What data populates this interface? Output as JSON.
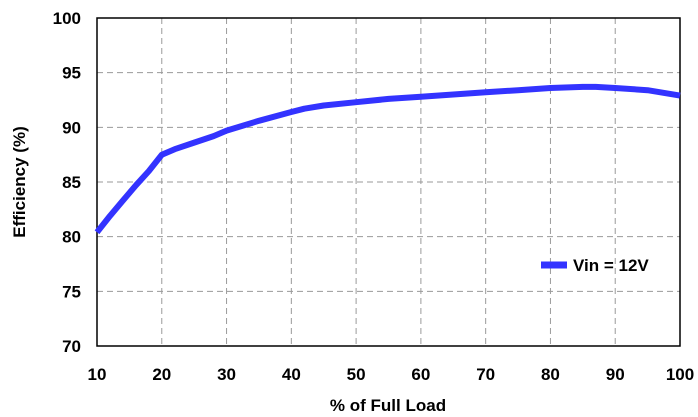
{
  "chart_data": {
    "type": "line",
    "title": "",
    "xlabel": "% of Full Load",
    "ylabel": "Efficiency (%)",
    "xlim": [
      10,
      100
    ],
    "ylim": [
      70,
      100
    ],
    "xticks": [
      10,
      20,
      30,
      40,
      50,
      60,
      70,
      80,
      90,
      100
    ],
    "yticks": [
      70,
      75,
      80,
      85,
      90,
      95,
      100
    ],
    "grid": true,
    "legend_position": "right",
    "series": [
      {
        "name": "Vin = 12V",
        "color": "#3333ff",
        "x": [
          10,
          12,
          14,
          16,
          18,
          20,
          22,
          25,
          28,
          30,
          35,
          40,
          42,
          45,
          50,
          55,
          60,
          65,
          70,
          75,
          80,
          85,
          87,
          90,
          95,
          100
        ],
        "y": [
          80.4,
          81.9,
          83.3,
          84.7,
          86.0,
          87.5,
          88.0,
          88.6,
          89.2,
          89.7,
          90.6,
          91.4,
          91.7,
          92.0,
          92.3,
          92.6,
          92.8,
          93.0,
          93.2,
          93.4,
          93.6,
          93.7,
          93.7,
          93.6,
          93.4,
          92.9
        ]
      }
    ]
  }
}
